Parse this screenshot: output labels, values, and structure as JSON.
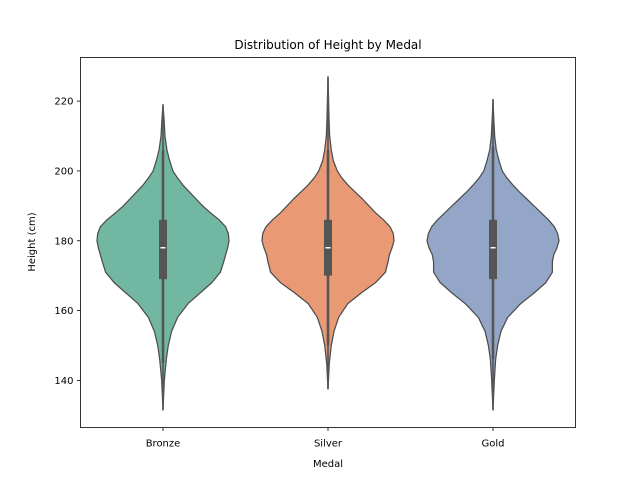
{
  "chart_data": {
    "type": "violin",
    "title": "Distribution of Height by Medal",
    "xlabel": "Medal",
    "ylabel": "Height (cm)",
    "ylim": [
      126.5,
      232.5
    ],
    "yticks": [
      140,
      160,
      180,
      200,
      220
    ],
    "ytick_labels": [
      "140",
      "160",
      "180",
      "200",
      "220"
    ],
    "categories": [
      "Bronze",
      "Silver",
      "Gold"
    ],
    "grid": false,
    "series": [
      {
        "category": "Bronze",
        "color": "#72b7a1",
        "min": 131.5,
        "max": 219,
        "q1": 169,
        "median": 178,
        "q3": 186,
        "whisker_low": 145,
        "whisker_high": 206,
        "density": [
          [
            131.5,
            0.0
          ],
          [
            140,
            0.02
          ],
          [
            146,
            0.05
          ],
          [
            150,
            0.08
          ],
          [
            154,
            0.13
          ],
          [
            158,
            0.22
          ],
          [
            162,
            0.38
          ],
          [
            165,
            0.56
          ],
          [
            168,
            0.74
          ],
          [
            171,
            0.87
          ],
          [
            174,
            0.92
          ],
          [
            176,
            0.95
          ],
          [
            178,
            0.98
          ],
          [
            180,
            1.0
          ],
          [
            182,
            0.99
          ],
          [
            184,
            0.95
          ],
          [
            186,
            0.85
          ],
          [
            188,
            0.72
          ],
          [
            190,
            0.6
          ],
          [
            192,
            0.5
          ],
          [
            194,
            0.4
          ],
          [
            196,
            0.3
          ],
          [
            198,
            0.22
          ],
          [
            200,
            0.15
          ],
          [
            203,
            0.1
          ],
          [
            206,
            0.06
          ],
          [
            210,
            0.03
          ],
          [
            215,
            0.015
          ],
          [
            219,
            0.0
          ]
        ]
      },
      {
        "category": "Silver",
        "color": "#e99a75",
        "min": 137.5,
        "max": 227,
        "q1": 170,
        "median": 178,
        "q3": 186,
        "whisker_low": 150,
        "whisker_high": 206,
        "density": [
          [
            137.5,
            0.0
          ],
          [
            145,
            0.02
          ],
          [
            150,
            0.05
          ],
          [
            154,
            0.09
          ],
          [
            158,
            0.16
          ],
          [
            162,
            0.3
          ],
          [
            165,
            0.5
          ],
          [
            168,
            0.72
          ],
          [
            171,
            0.87
          ],
          [
            174,
            0.91
          ],
          [
            176,
            0.93
          ],
          [
            178,
            0.97
          ],
          [
            180,
            1.0
          ],
          [
            182,
            0.99
          ],
          [
            184,
            0.94
          ],
          [
            186,
            0.84
          ],
          [
            188,
            0.72
          ],
          [
            190,
            0.62
          ],
          [
            192,
            0.52
          ],
          [
            194,
            0.41
          ],
          [
            196,
            0.3
          ],
          [
            198,
            0.21
          ],
          [
            200,
            0.14
          ],
          [
            203,
            0.08
          ],
          [
            206,
            0.05
          ],
          [
            210,
            0.025
          ],
          [
            215,
            0.015
          ],
          [
            221,
            0.008
          ],
          [
            227,
            0.0
          ]
        ]
      },
      {
        "category": "Gold",
        "color": "#93a6c8",
        "min": 131.5,
        "max": 220.5,
        "q1": 169,
        "median": 178,
        "q3": 186,
        "whisker_low": 146,
        "whisker_high": 207,
        "density": [
          [
            131.5,
            0.0
          ],
          [
            140,
            0.02
          ],
          [
            146,
            0.04
          ],
          [
            150,
            0.07
          ],
          [
            154,
            0.12
          ],
          [
            158,
            0.22
          ],
          [
            162,
            0.42
          ],
          [
            165,
            0.62
          ],
          [
            168,
            0.8
          ],
          [
            171,
            0.9
          ],
          [
            174,
            0.9
          ],
          [
            176,
            0.92
          ],
          [
            178,
            0.97
          ],
          [
            180,
            1.0
          ],
          [
            182,
            0.98
          ],
          [
            184,
            0.93
          ],
          [
            186,
            0.84
          ],
          [
            188,
            0.73
          ],
          [
            190,
            0.62
          ],
          [
            192,
            0.51
          ],
          [
            194,
            0.4
          ],
          [
            196,
            0.3
          ],
          [
            198,
            0.21
          ],
          [
            200,
            0.14
          ],
          [
            203,
            0.09
          ],
          [
            206,
            0.05
          ],
          [
            210,
            0.025
          ],
          [
            215,
            0.012
          ],
          [
            220.5,
            0.0
          ]
        ]
      }
    ]
  }
}
